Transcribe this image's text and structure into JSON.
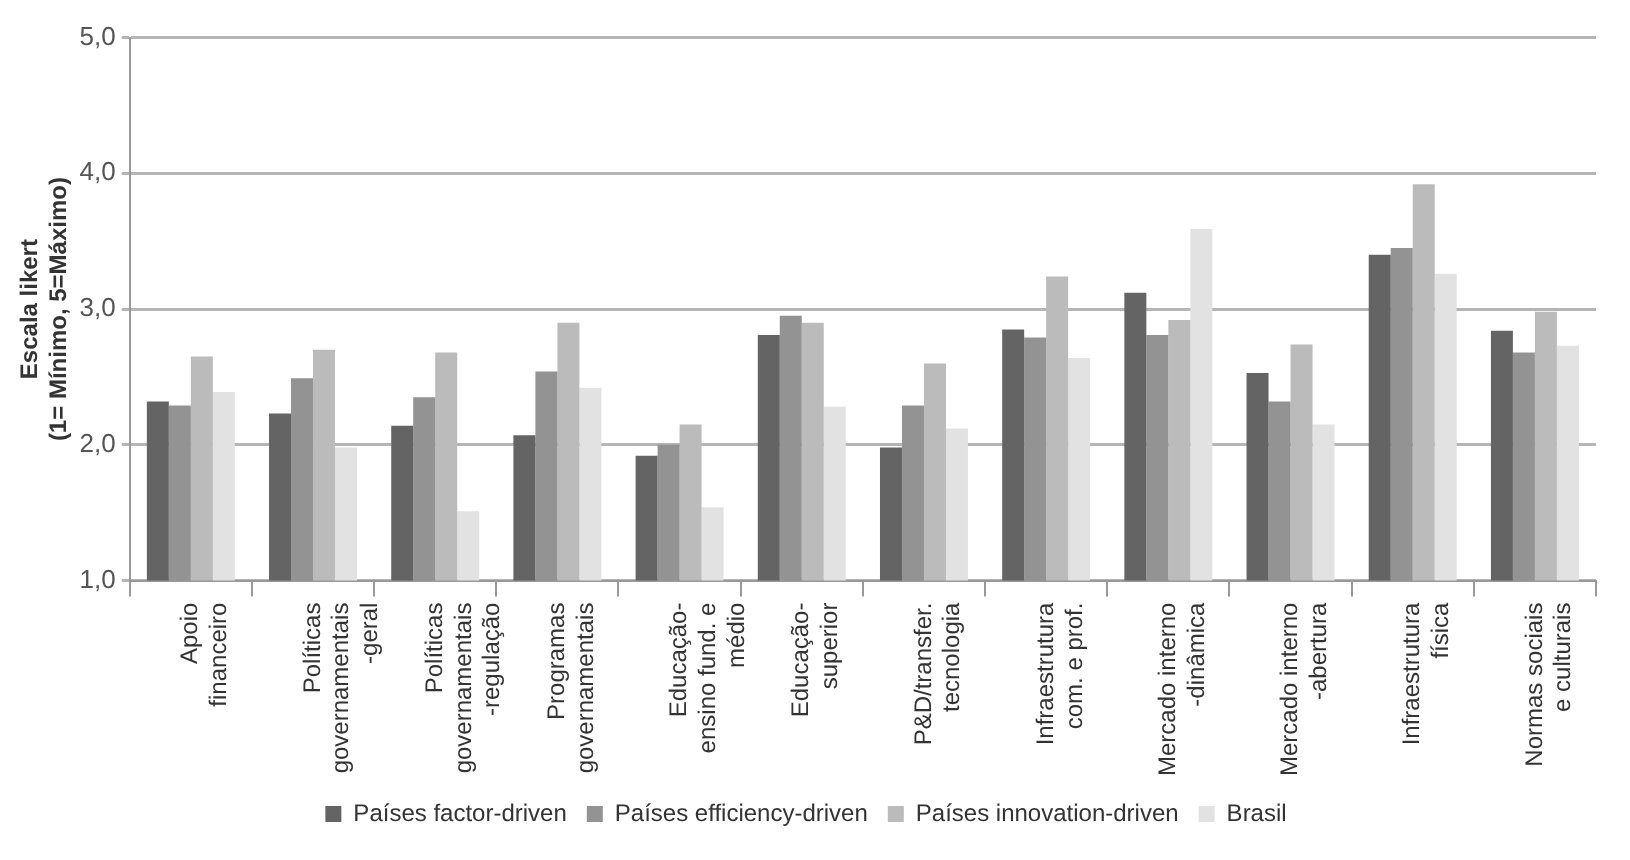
{
  "chart_data": {
    "type": "bar",
    "ylabel": "Escala likert\n(1= Mínimo, 5=Máximo)",
    "categories": [
      "Apoio\nfinanceiro",
      "Políticas\ngovernamentais\n-geral",
      "Políticas\ngovernamentais\n-regulação",
      "Programas\ngovernamentais",
      "Educação-\nensino fund. e\nmédio",
      "Educação-\nsuperior",
      "P&D/transfer.\ntecnologia",
      "Infraestrutura\ncom. e prof.",
      "Mercado interno\n-dinâmica",
      "Mercado interno\n-abertura",
      "Infraestrutura\nfísica",
      "Normas sociais\ne culturais"
    ],
    "series": [
      {
        "name": "Países factor-driven",
        "color": "#646464",
        "values": [
          2.32,
          2.23,
          2.14,
          2.07,
          1.92,
          2.81,
          1.98,
          2.85,
          3.12,
          2.53,
          3.4,
          2.84
        ]
      },
      {
        "name": "Países efficiency-driven",
        "color": "#939393",
        "values": [
          2.29,
          2.49,
          2.35,
          2.54,
          2.0,
          2.95,
          2.29,
          2.79,
          2.81,
          2.32,
          3.45,
          2.68
        ]
      },
      {
        "name": "Países innovation-driven",
        "color": "#bbbbbb",
        "values": [
          2.65,
          2.7,
          2.68,
          2.9,
          2.15,
          2.9,
          2.6,
          3.24,
          2.92,
          2.74,
          3.92,
          2.98
        ]
      },
      {
        "name": "Brasil",
        "color": "#e2e2e2",
        "values": [
          2.39,
          1.98,
          1.51,
          2.42,
          1.54,
          2.28,
          2.12,
          2.64,
          3.59,
          2.15,
          3.26,
          2.73
        ]
      }
    ],
    "ylim": [
      1,
      5
    ],
    "yticks": [
      {
        "value": 1,
        "label": "1,0"
      },
      {
        "value": 2,
        "label": "2,0"
      },
      {
        "value": 3,
        "label": "3,0"
      },
      {
        "value": 4,
        "label": "4,0"
      },
      {
        "value": 5,
        "label": "5,0"
      }
    ],
    "grid": "y",
    "legend": "bottom"
  }
}
